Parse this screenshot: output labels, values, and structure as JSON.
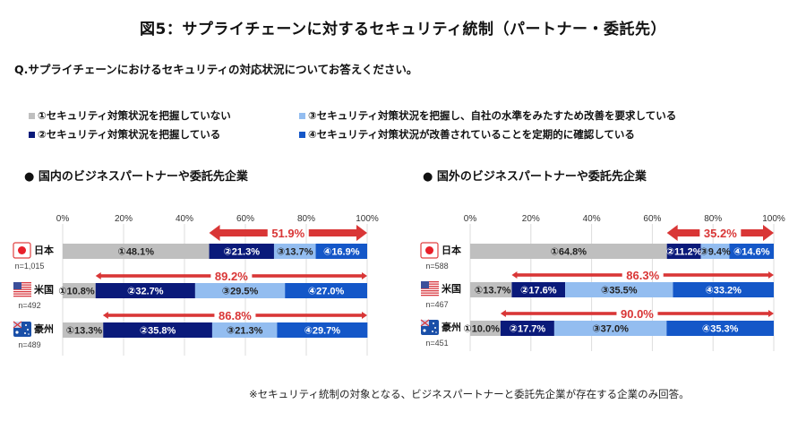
{
  "title": "図5：サプライチェーンに対するセキュリティ統制（パートナー・委託先）",
  "question": "Q.サプライチェーンにおけるセキュリティの対応状況についてお答えください。",
  "legend": [
    {
      "label": "■①セキュリティ対策状況を把握していない",
      "text": "①セキュリティ対策状況を把握していない",
      "color": "#bfbfbf"
    },
    {
      "label": "■②セキュリティ対策状況を把握している",
      "text": "②セキュリティ対策状況を把握している",
      "color": "#0a1a7a"
    },
    {
      "label": "■③セキュリティ対策状況を把握し、自社の水準をみたすため改善を要求している",
      "text": "③セキュリティ対策状況を把握し、自社の水準をみたすため改善を要求している",
      "color": "#93bdf0"
    },
    {
      "label": "■④セキュリティ対策状況が改善されていることを定期的に確認している",
      "text": "④セキュリティ対策状況が改善されていることを定期的に確認している",
      "color": "#1457c8"
    }
  ],
  "note": "※セキュリティ統制の対象となる、ビジネスパートナーと委託先企業が存在する企業のみ回答。",
  "chart_data": [
    {
      "type": "bar",
      "orientation": "horizontal-stacked-100",
      "title": "● 国内のビジネスパートナーや委託先企業",
      "xlim": [
        0,
        100
      ],
      "xticks": [
        "0%",
        "20%",
        "40%",
        "60%",
        "80%",
        "100%"
      ],
      "grid": true,
      "categories": [
        {
          "name": "日本",
          "n": "n=1,015",
          "flag": "japan-flag"
        },
        {
          "name": "米国",
          "n": "n=492",
          "flag": "usa-flag"
        },
        {
          "name": "豪州",
          "n": "n=489",
          "flag": "australia-flag"
        }
      ],
      "series": [
        {
          "name": "①",
          "values": [
            48.1,
            10.8,
            13.3
          ],
          "labels": [
            "①48.1%",
            "①10.8%",
            "①13.3%"
          ]
        },
        {
          "name": "②",
          "values": [
            21.3,
            32.7,
            35.8
          ],
          "labels": [
            "②21.3%",
            "②32.7%",
            "②35.8%"
          ]
        },
        {
          "name": "③",
          "values": [
            13.7,
            29.5,
            21.3
          ],
          "labels": [
            "③13.7%",
            "③29.5%",
            "③21.3%"
          ]
        },
        {
          "name": "④",
          "values": [
            16.9,
            27.0,
            29.7
          ],
          "labels": [
            "④16.9%",
            "④27.0%",
            "④29.7%"
          ]
        }
      ],
      "annotations": [
        {
          "text": "51.9%",
          "value": 51.9,
          "style": "thick"
        },
        {
          "text": "89.2%",
          "value": 89.2,
          "style": "thin"
        },
        {
          "text": "86.8%",
          "value": 86.8,
          "style": "thin"
        }
      ]
    },
    {
      "type": "bar",
      "orientation": "horizontal-stacked-100",
      "title": "● 国外のビジネスパートナーや委託先企業",
      "xlim": [
        0,
        100
      ],
      "xticks": [
        "0%",
        "20%",
        "40%",
        "60%",
        "80%",
        "100%"
      ],
      "grid": true,
      "categories": [
        {
          "name": "日本",
          "n": "n=588",
          "flag": "japan-flag"
        },
        {
          "name": "米国",
          "n": "n=467",
          "flag": "usa-flag"
        },
        {
          "name": "豪州",
          "n": "n=451",
          "flag": "australia-flag"
        }
      ],
      "series": [
        {
          "name": "①",
          "values": [
            64.8,
            13.7,
            10.0
          ],
          "labels": [
            "①64.8%",
            "①13.7%",
            "①10.0%"
          ]
        },
        {
          "name": "②",
          "values": [
            11.2,
            17.6,
            17.7
          ],
          "labels": [
            "②11.2%",
            "②17.6%",
            "②17.7%"
          ]
        },
        {
          "name": "③",
          "values": [
            9.4,
            35.5,
            37.0
          ],
          "labels": [
            "③9.4%",
            "③35.5%",
            "③37.0%"
          ]
        },
        {
          "name": "④",
          "values": [
            14.6,
            33.2,
            35.3
          ],
          "labels": [
            "④14.6%",
            "④33.2%",
            "④35.3%"
          ]
        }
      ],
      "annotations": [
        {
          "text": "35.2%",
          "value": 35.2,
          "style": "thick"
        },
        {
          "text": "86.3%",
          "value": 86.3,
          "style": "thin"
        },
        {
          "text": "90.0%",
          "value": 90.0,
          "style": "thin"
        }
      ]
    }
  ],
  "colors": {
    "arrow": "#d93636",
    "arrow_text": "#d93636",
    "grid": "#dcdcdc",
    "label_dark_text": "#222222",
    "label_light_text": "#ffffff"
  }
}
